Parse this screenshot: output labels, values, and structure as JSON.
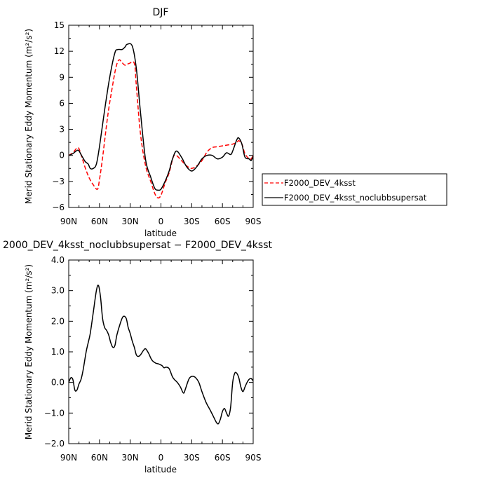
{
  "chart_data": [
    {
      "type": "line",
      "title": "DJF",
      "xlabel": "latitude",
      "ylabel": "Merid Stationary Eddy Momentum (m²/s²)",
      "x_ticks": [
        90,
        60,
        30,
        0,
        -30,
        -60,
        -90
      ],
      "x_tick_labels": [
        "90N",
        "60N",
        "30N",
        "0",
        "30S",
        "60S",
        "90S"
      ],
      "xlim": [
        90,
        -90
      ],
      "ylim": [
        -6,
        15
      ],
      "y_ticks": [
        -6,
        -3,
        0,
        3,
        6,
        9,
        12,
        15
      ],
      "y_tick_labels": [
        "−6",
        "−3",
        "0",
        "3",
        "6",
        "9",
        "12",
        "15"
      ],
      "legend_position": "right",
      "series": [
        {
          "name": "F2000_DEV_4ksst",
          "color": "#ff0000",
          "dash": "dashed",
          "points": [
            [
              90,
              0
            ],
            [
              86,
              0.3
            ],
            [
              81,
              0.9
            ],
            [
              78,
              0.1
            ],
            [
              74,
              -1.4
            ],
            [
              70,
              -2.6
            ],
            [
              66,
              -3.4
            ],
            [
              62,
              -3.9
            ],
            [
              60,
              -2.8
            ],
            [
              57,
              -0.3
            ],
            [
              52,
              4.5
            ],
            [
              48,
              7.5
            ],
            [
              44,
              10.1
            ],
            [
              41,
              11.0
            ],
            [
              38,
              10.7
            ],
            [
              35,
              10.4
            ],
            [
              31,
              10.6
            ],
            [
              26,
              10.6
            ],
            [
              24,
              8.0
            ],
            [
              20,
              2.5
            ],
            [
              15,
              -1.2
            ],
            [
              10,
              -3.0
            ],
            [
              6,
              -4.4
            ],
            [
              3,
              -4.9
            ],
            [
              0,
              -4.6
            ],
            [
              -4,
              -3.2
            ],
            [
              -8,
              -2.0
            ],
            [
              -12,
              -0.2
            ],
            [
              -15,
              0.0
            ],
            [
              -20,
              -0.6
            ],
            [
              -25,
              -1.2
            ],
            [
              -30,
              -1.5
            ],
            [
              -35,
              -1.2
            ],
            [
              -40,
              -0.6
            ],
            [
              -45,
              0.4
            ],
            [
              -50,
              0.9
            ],
            [
              -55,
              1.0
            ],
            [
              -60,
              1.1
            ],
            [
              -65,
              1.2
            ],
            [
              -70,
              1.3
            ],
            [
              -74,
              1.5
            ],
            [
              -76,
              1.7
            ],
            [
              -79,
              1.3
            ],
            [
              -82,
              0.2
            ],
            [
              -86,
              -0.4
            ],
            [
              -88,
              -0.4
            ],
            [
              -90,
              0.0
            ]
          ]
        },
        {
          "name": "F2000_DEV_4ksst_noclubbsupersat",
          "color": "#000000",
          "dash": "solid",
          "points": [
            [
              90,
              0
            ],
            [
              86,
              0.2
            ],
            [
              81,
              0.6
            ],
            [
              78,
              0.1
            ],
            [
              74,
              -0.7
            ],
            [
              71,
              -1.0
            ],
            [
              69,
              -1.5
            ],
            [
              66,
              -1.5
            ],
            [
              63,
              -1.0
            ],
            [
              60,
              1.0
            ],
            [
              55,
              5.2
            ],
            [
              50,
              9.0
            ],
            [
              45,
              11.8
            ],
            [
              42,
              12.2
            ],
            [
              38,
              12.2
            ],
            [
              35,
              12.5
            ],
            [
              33,
              12.8
            ],
            [
              28,
              12.6
            ],
            [
              24,
              10.0
            ],
            [
              20,
              5.0
            ],
            [
              15,
              -0.5
            ],
            [
              10,
              -2.5
            ],
            [
              6,
              -3.8
            ],
            [
              3,
              -4.0
            ],
            [
              0,
              -3.9
            ],
            [
              -4,
              -3.0
            ],
            [
              -8,
              -1.8
            ],
            [
              -11,
              -0.5
            ],
            [
              -15,
              0.5
            ],
            [
              -20,
              -0.2
            ],
            [
              -25,
              -1.3
            ],
            [
              -30,
              -1.8
            ],
            [
              -35,
              -1.3
            ],
            [
              -40,
              -0.4
            ],
            [
              -45,
              0.0
            ],
            [
              -50,
              0.0
            ],
            [
              -55,
              -0.4
            ],
            [
              -60,
              -0.2
            ],
            [
              -64,
              0.3
            ],
            [
              -68,
              0.1
            ],
            [
              -70,
              0.5
            ],
            [
              -74,
              1.8
            ],
            [
              -76,
              2.0
            ],
            [
              -79,
              1.3
            ],
            [
              -82,
              -0.2
            ],
            [
              -86,
              -0.4
            ],
            [
              -88,
              -0.6
            ],
            [
              -90,
              -0.1
            ]
          ]
        }
      ]
    },
    {
      "type": "line",
      "title": "2000_DEV_4ksst_noclubbsupersat − F2000_DEV_4ksst",
      "xlabel": "latitude",
      "ylabel": "Merid Stationary Eddy Momentum (m²/s²)",
      "x_ticks": [
        90,
        60,
        30,
        0,
        -30,
        -60,
        -90
      ],
      "x_tick_labels": [
        "90N",
        "60N",
        "30N",
        "0",
        "30S",
        "60S",
        "90S"
      ],
      "xlim": [
        90,
        -90
      ],
      "ylim": [
        -2,
        4
      ],
      "y_ticks": [
        -2,
        -1,
        0,
        1,
        2,
        3,
        4
      ],
      "y_tick_labels": [
        "−2.0",
        "−1.0",
        "0.0",
        "1.0",
        "2.0",
        "3.0",
        "4.0"
      ],
      "series": [
        {
          "color": "#000000",
          "dash": "solid",
          "points": [
            [
              90,
              0.0
            ],
            [
              88,
              0.15
            ],
            [
              86,
              0.1
            ],
            [
              84,
              -0.25
            ],
            [
              82,
              -0.25
            ],
            [
              80,
              -0.05
            ],
            [
              78,
              0.1
            ],
            [
              76,
              0.4
            ],
            [
              73,
              1.0
            ],
            [
              71,
              1.3
            ],
            [
              69,
              1.6
            ],
            [
              66,
              2.3
            ],
            [
              63,
              3.0
            ],
            [
              61,
              3.17
            ],
            [
              59,
              2.8
            ],
            [
              57,
              2.1
            ],
            [
              55,
              1.8
            ],
            [
              53,
              1.7
            ],
            [
              51,
              1.55
            ],
            [
              49,
              1.3
            ],
            [
              47,
              1.15
            ],
            [
              45,
              1.2
            ],
            [
              43,
              1.55
            ],
            [
              40,
              1.9
            ],
            [
              37,
              2.15
            ],
            [
              34,
              2.1
            ],
            [
              32,
              1.8
            ],
            [
              30,
              1.6
            ],
            [
              28,
              1.35
            ],
            [
              26,
              1.15
            ],
            [
              24,
              0.9
            ],
            [
              22,
              0.85
            ],
            [
              20,
              0.9
            ],
            [
              17,
              1.05
            ],
            [
              15,
              1.1
            ],
            [
              12,
              0.95
            ],
            [
              10,
              0.8
            ],
            [
              8,
              0.7
            ],
            [
              5,
              0.63
            ],
            [
              2,
              0.6
            ],
            [
              -1,
              0.55
            ],
            [
              -3,
              0.48
            ],
            [
              -5,
              0.5
            ],
            [
              -8,
              0.45
            ],
            [
              -11,
              0.2
            ],
            [
              -13,
              0.1
            ],
            [
              -16,
              0.0
            ],
            [
              -19,
              -0.15
            ],
            [
              -22,
              -0.35
            ],
            [
              -24,
              -0.2
            ],
            [
              -26,
              0.0
            ],
            [
              -28,
              0.15
            ],
            [
              -31,
              0.2
            ],
            [
              -34,
              0.15
            ],
            [
              -37,
              0.0
            ],
            [
              -40,
              -0.3
            ],
            [
              -44,
              -0.65
            ],
            [
              -48,
              -0.9
            ],
            [
              -51,
              -1.1
            ],
            [
              -54,
              -1.3
            ],
            [
              -56,
              -1.35
            ],
            [
              -58,
              -1.2
            ],
            [
              -60,
              -0.95
            ],
            [
              -62,
              -0.85
            ],
            [
              -64,
              -1.0
            ],
            [
              -66,
              -1.1
            ],
            [
              -68,
              -0.8
            ],
            [
              -70,
              0.0
            ],
            [
              -72,
              0.3
            ],
            [
              -74,
              0.3
            ],
            [
              -76,
              0.15
            ],
            [
              -78,
              -0.15
            ],
            [
              -80,
              -0.3
            ],
            [
              -82,
              -0.15
            ],
            [
              -84,
              0.0
            ],
            [
              -86,
              0.1
            ],
            [
              -88,
              0.13
            ],
            [
              -90,
              0.05
            ]
          ]
        }
      ]
    }
  ]
}
